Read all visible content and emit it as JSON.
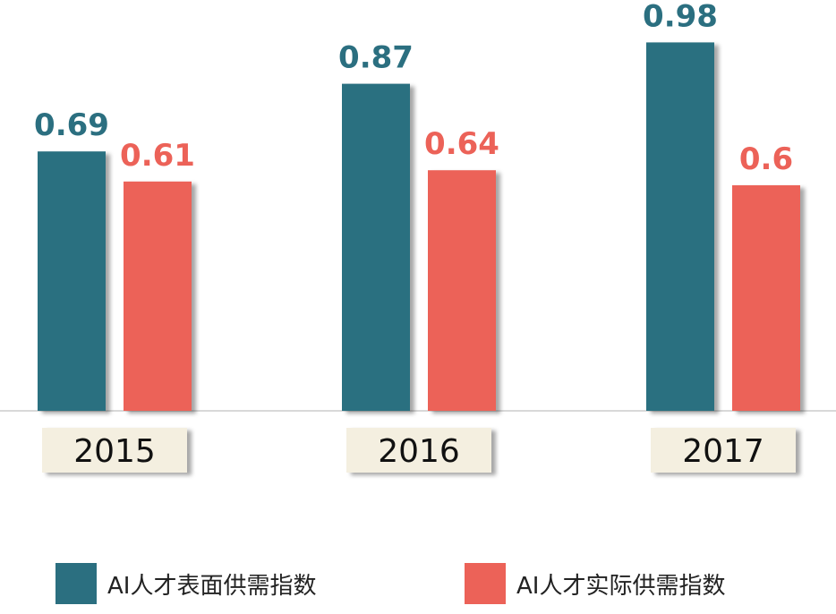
{
  "chart_data": {
    "type": "bar",
    "categories": [
      "2015",
      "2016",
      "2017"
    ],
    "series": [
      {
        "name": "AI人才表面供需指数",
        "values": [
          0.69,
          0.87,
          0.98
        ],
        "color": "#2B6F80"
      },
      {
        "name": "AI人才实际供需指数",
        "values": [
          0.61,
          0.64,
          0.6
        ],
        "color": "#EC6258"
      }
    ],
    "value_labels": [
      [
        "0.69",
        "0.87",
        "0.98"
      ],
      [
        "0.61",
        "0.64",
        "0.6"
      ]
    ],
    "ylim": [
      0,
      1
    ],
    "grid": false,
    "legend_position": "bottom",
    "category_label_box_color": "#F4EFE0",
    "title": "",
    "xlabel": "",
    "ylabel": ""
  }
}
